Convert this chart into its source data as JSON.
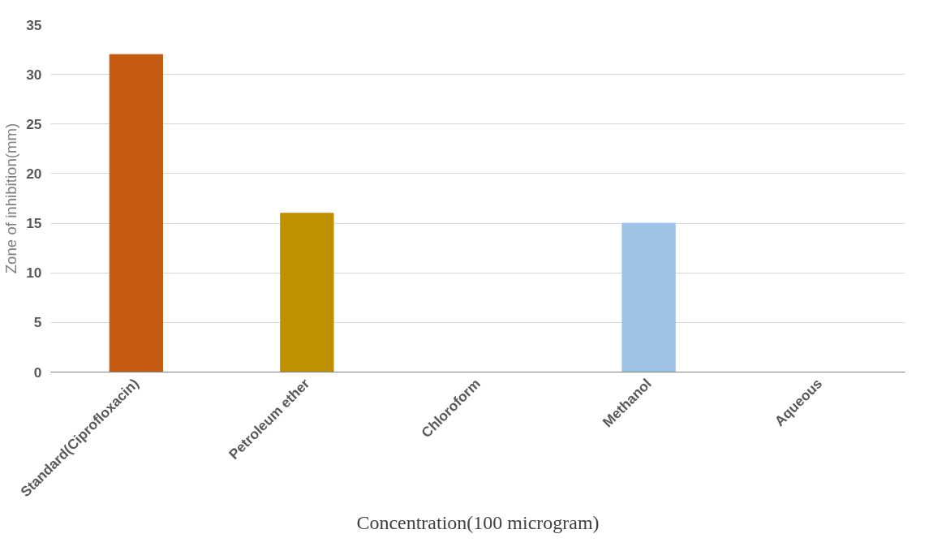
{
  "chart_data": {
    "type": "bar",
    "xlabel": "Concentration(100 microgram)",
    "ylabel": "Zone of inhibition(mm)",
    "categories": [
      "Standard(Ciprofloxacin)",
      "Petroleum ether",
      "Chloroform",
      "Methanol",
      "Aqueous"
    ],
    "values": [
      32,
      16,
      0,
      15,
      0
    ],
    "colors": [
      "#c55a11",
      "#bf9000",
      "#a5a5a5",
      "#9dc3e6",
      "#70ad47"
    ],
    "ylim": [
      0,
      35
    ],
    "yticks": [
      0,
      5,
      10,
      15,
      20,
      25,
      30,
      35
    ],
    "grid": "y"
  }
}
